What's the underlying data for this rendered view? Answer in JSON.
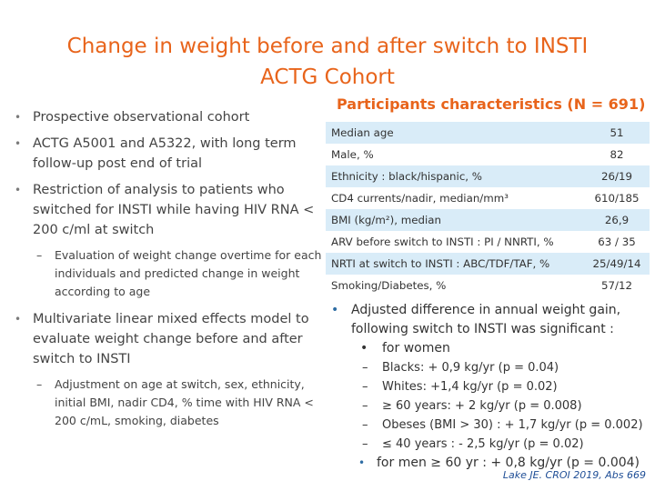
{
  "title": {
    "line1": "Change in weight before and after switch to INSTI",
    "line2": "ACTG Cohort"
  },
  "left_bullets": [
    {
      "text": "Prospective observational cohort"
    },
    {
      "text": "ACTG A5001 and A5322, with long term follow-up post end of trial"
    },
    {
      "text": "Restriction of analysis to patients who switched for INSTI while having HIV RNA < 200 c/ml at switch"
    },
    {
      "sub": "Evaluation of weight change overtime for each individuals and predicted change in weight according to age"
    },
    {
      "text": "Multivariate linear mixed effects model to evaluate weight change before and after switch to INSTI"
    },
    {
      "sub": "Adjustment on age at switch, sex, ethnicity, initial BMI, nadir CD4, % time with HIV RNA < 200 c/mL, smoking, diabetes"
    }
  ],
  "participants": {
    "title": "Participants characteristics (N = 691)",
    "rows": [
      {
        "label": "Median age",
        "value": "51"
      },
      {
        "label": "Male, %",
        "value": "82"
      },
      {
        "label": "Ethnicity : black/hispanic, %",
        "value": "26/19"
      },
      {
        "label": "CD4 currents/nadir, median/mm³",
        "value": "610/185"
      },
      {
        "label": "BMI (kg/m²), median",
        "value": "26,9"
      },
      {
        "label": "ARV before switch to INSTI : PI / NNRTI, %",
        "value": "63 / 35"
      },
      {
        "label": "NRTI at switch to INSTI : ABC/TDF/TAF, %",
        "value": "25/49/14"
      },
      {
        "label": "Smoking/Diabetes, %",
        "value": "57/12"
      }
    ]
  },
  "findings": {
    "main": "Adjusted difference in annual weight gain, following switch to INSTI was significant :",
    "women_label": "for women",
    "women_items": [
      "Blacks: + 0,9 kg/yr (p = 0.04)",
      "Whites: +1,4 kg/yr (p = 0.02)",
      "≥ 60 years: + 2 kg/yr (p = 0.008)",
      "Obeses (BMI > 30) : + 1,7 kg/yr (p = 0.002)",
      "≤ 40 years : - 2,5 kg/yr (p = 0.02)"
    ],
    "men": "for men ≥ 60 yr : + 0,8 kg/yr (p = 0.004)"
  },
  "reference": "Lake JE. CROI 2019, Abs 669",
  "colors": {
    "title": "#e8641b",
    "row_band": "#d9ecf8",
    "reference": "#1f4e96"
  }
}
